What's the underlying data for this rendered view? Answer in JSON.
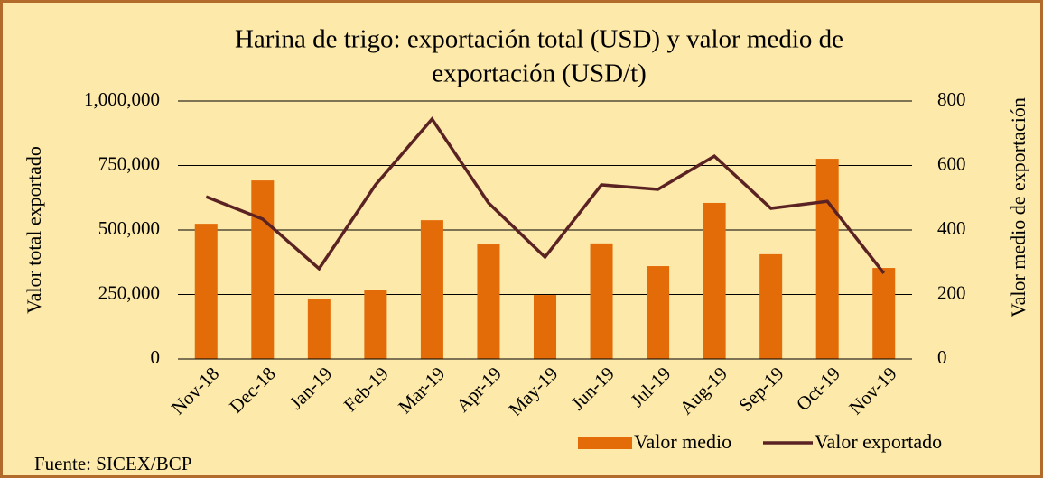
{
  "chart_data": {
    "type": "bar_line",
    "title": "Harina de trigo: exportación total (USD) y valor medio de exportación (USD/t)",
    "title_lines": [
      "Harina de trigo: exportación total (USD) y valor medio de",
      "exportación (USD/t)"
    ],
    "y_label": "Valor total exportado",
    "y2_label": "Valor medio de exportación",
    "source": "Fuente: SICEX/BCP",
    "categories": [
      "Nov-18",
      "Dec-18",
      "Jan-19",
      "Feb-19",
      "Mar-19",
      "Apr-19",
      "May-19",
      "Jun-19",
      "Jul-19",
      "Aug-19",
      "Sep-19",
      "Oct-19",
      "Nov-19"
    ],
    "series": [
      {
        "name": "Valor medio",
        "type": "bar",
        "color": "#e36c09",
        "values": [
          524000,
          692000,
          231000,
          266000,
          538000,
          444000,
          248000,
          448000,
          360000,
          605000,
          406000,
          776000,
          353000
        ]
      },
      {
        "name": "Valor exportado",
        "type": "line",
        "color": "#5a2222",
        "axis": "y2",
        "values": [
          503,
          434,
          280,
          540,
          744,
          484,
          316,
          540,
          526,
          629,
          467,
          489,
          266
        ]
      }
    ],
    "ylim": [
      0,
      1000000
    ],
    "yticks": [
      0,
      {
        "value": 250000,
        "label": "250,000"
      },
      {
        "value": 500000,
        "label": "500,000"
      },
      {
        "value": 750000,
        "label": "750,000"
      },
      {
        "value": 1000000,
        "label": "1,000,000"
      }
    ],
    "y2lim": [
      0,
      800
    ],
    "y2ticks": [
      0,
      200,
      400,
      600,
      800
    ],
    "grid": true,
    "legend": "bottom-right"
  }
}
